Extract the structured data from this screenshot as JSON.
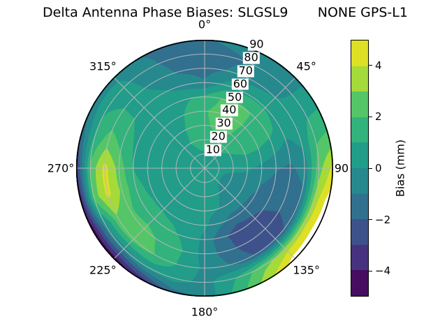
{
  "title": "Delta Antenna Phase Biases: SLGSL9       NONE GPS-L1",
  "chart_data": {
    "type": "polar_contour",
    "title": "Delta Antenna Phase Biases: SLGSL9       NONE GPS-L1",
    "projection": "azimuth clockwise from top (0-360 deg), zenith 0 at center to 90 at rim",
    "angle_labels": [
      {
        "deg": 0,
        "label": "0°"
      },
      {
        "deg": 45,
        "label": "45°"
      },
      {
        "deg": 90,
        "label": "90"
      },
      {
        "deg": 135,
        "label": "135°"
      },
      {
        "deg": 180,
        "label": "180°"
      },
      {
        "deg": 225,
        "label": "225°"
      },
      {
        "deg": 270,
        "label": "270°"
      },
      {
        "deg": 315,
        "label": "315°"
      }
    ],
    "radial_ticks": {
      "labels": [
        "10",
        "20",
        "30",
        "40",
        "50",
        "60",
        "70",
        "80",
        "90"
      ],
      "angle_deg": 22.5,
      "max": 90
    },
    "grid": {
      "ring_step_deg": 10,
      "spoke_step_deg": 45,
      "color": "#b5b7b9"
    },
    "azimuth_deg": [
      0,
      15,
      30,
      45,
      60,
      75,
      90,
      105,
      120,
      135,
      150,
      165,
      180,
      195,
      210,
      225,
      240,
      255,
      270,
      285,
      300,
      315,
      330,
      345
    ],
    "zenith_deg": [
      0,
      10,
      20,
      30,
      40,
      50,
      60,
      70,
      80,
      90
    ],
    "values_mm": [
      [
        0.5,
        0.5,
        0.5,
        0.5,
        0.5,
        0.5,
        0.5,
        0.5,
        0.5,
        0.5,
        0.5,
        0.5,
        0.5,
        0.5,
        0.5,
        0.5,
        0.5,
        0.5,
        0.5,
        0.5,
        0.5,
        0.5,
        0.5,
        0.5
      ],
      [
        0.9,
        1.0,
        0.8,
        0.7,
        0.5,
        0.4,
        0.3,
        0.2,
        0.2,
        0.2,
        0.3,
        0.3,
        0.4,
        0.4,
        0.5,
        0.5,
        0.5,
        0.5,
        0.5,
        0.5,
        0.6,
        0.7,
        0.8,
        0.9
      ],
      [
        1.5,
        1.7,
        1.5,
        1.3,
        1.0,
        0.7,
        0.3,
        -0.2,
        -0.4,
        -0.3,
        0.0,
        0.2,
        0.3,
        0.4,
        0.5,
        0.6,
        0.6,
        0.6,
        0.6,
        0.6,
        0.7,
        0.8,
        1.0,
        1.2
      ],
      [
        1.8,
        2.2,
        2.2,
        1.8,
        1.4,
        0.9,
        0.2,
        -0.4,
        -0.7,
        -0.6,
        -0.2,
        0.1,
        0.3,
        0.5,
        0.6,
        0.7,
        0.7,
        0.6,
        0.5,
        0.5,
        0.6,
        0.6,
        0.9,
        1.3
      ],
      [
        1.9,
        2.4,
        2.3,
        1.9,
        1.5,
        0.8,
        -0.3,
        -0.9,
        -1.1,
        -1.2,
        -1.4,
        -0.7,
        0.2,
        0.6,
        0.8,
        0.9,
        0.9,
        0.8,
        0.6,
        0.5,
        0.5,
        0.5,
        0.7,
        1.2
      ],
      [
        1.2,
        2.1,
        2.2,
        1.9,
        1.4,
        0.3,
        -0.9,
        -1.4,
        -1.8,
        -2.3,
        -2.6,
        -1.8,
        -0.3,
        0.8,
        1.2,
        1.4,
        1.3,
        1.2,
        1.0,
        0.8,
        0.6,
        0.4,
        0.5,
        0.9
      ],
      [
        -0.9,
        0.4,
        0.8,
        0.9,
        0.6,
        -0.3,
        -1.2,
        -1.6,
        -2.0,
        -2.5,
        -2.6,
        -1.5,
        -0.4,
        1.0,
        1.8,
        2.4,
        2.2,
        2.8,
        2.6,
        1.8,
        1.2,
        0.6,
        0.2,
        -0.4
      ],
      [
        -1.4,
        -0.9,
        -0.4,
        0.0,
        0.3,
        0.2,
        -0.6,
        -1.2,
        -1.8,
        -2.2,
        -2.0,
        -1.0,
        -0.2,
        0.9,
        2.0,
        2.6,
        2.8,
        4.3,
        4.4,
        2.6,
        1.4,
        0.5,
        -0.4,
        -1.1
      ],
      [
        -1.6,
        -1.2,
        -0.8,
        -0.3,
        0.7,
        1.8,
        2.6,
        3.4,
        3.7,
        3.5,
        2.6,
        0.9,
        -0.4,
        0.5,
        0.3,
        -0.5,
        -0.3,
        2.4,
        2.2,
        1.2,
        0.9,
        0.3,
        -0.7,
        -1.4
      ],
      [
        -1.1,
        -0.7,
        -0.4,
        -0.4,
        0.8,
        2.2,
        4.3,
        5.6,
        5.8,
        5.6,
        3.6,
        1.4,
        -0.7,
        -1.5,
        -3.8,
        -4.8,
        -4.8,
        -4.2,
        -3.4,
        -1.8,
        -0.6,
        -0.2,
        -1.0,
        -1.4
      ]
    ],
    "levels": [
      -5,
      -4,
      -3,
      -2,
      -1,
      0,
      1,
      2,
      3,
      4,
      5
    ],
    "level_colors": [
      "#470d60",
      "#46327e",
      "#3d528b",
      "#31708e",
      "#26898e",
      "#219d89",
      "#32b37c",
      "#55c667",
      "#a4da39",
      "#dde025"
    ],
    "out_of_range_color": "#ffffff",
    "outline_color": "#000000",
    "colorbar": {
      "label": "Bias (mm)",
      "min": -5,
      "max": 5,
      "ticks": [
        {
          "value": 4,
          "label": "4"
        },
        {
          "value": 2,
          "label": "2"
        },
        {
          "value": 0,
          "label": "0"
        },
        {
          "value": -2,
          "label": "−2"
        },
        {
          "value": -4,
          "label": "−4"
        }
      ]
    }
  }
}
